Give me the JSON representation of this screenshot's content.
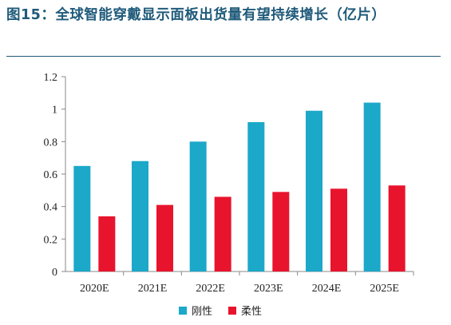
{
  "title": "图15：全球智能穿戴显示面板出货量有望持续增长（亿片）",
  "chart_data": {
    "type": "bar",
    "categories": [
      "2020E",
      "2021E",
      "2022E",
      "2023E",
      "2024E",
      "2025E"
    ],
    "series": [
      {
        "name": "刚性",
        "color": "#1ba8c9",
        "values": [
          0.65,
          0.68,
          0.8,
          0.92,
          0.99,
          1.04
        ]
      },
      {
        "name": "柔性",
        "color": "#e8142d",
        "values": [
          0.34,
          0.41,
          0.46,
          0.49,
          0.51,
          0.53
        ]
      }
    ],
    "ylim": [
      0,
      1.2
    ],
    "yticks": [
      "0",
      "0.2",
      "0.4",
      "0.6",
      "0.8",
      "1",
      "1.2"
    ],
    "grid": false,
    "legend_position": "bottom"
  }
}
